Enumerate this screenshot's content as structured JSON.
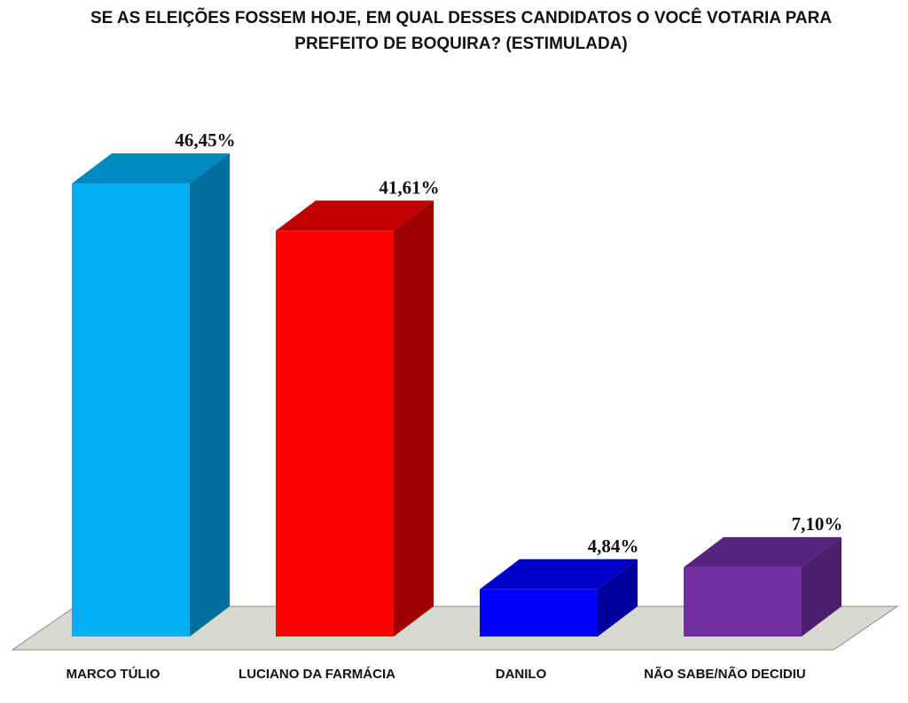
{
  "chart_data": {
    "type": "bar",
    "title_line1": "SE AS ELEIÇÕES FOSSEM HOJE, EM QUAL DESSES CANDIDATOS O VOCÊ VOTARIA PARA",
    "title_line2": "PREFEITO DE BOQUIRA?  (ESTIMULADA)",
    "categories": [
      "MARCO TÚLIO",
      "LUCIANO DA FARMÁCIA",
      "DANILO",
      "NÃO SABE/NÃO DECIDIU"
    ],
    "values": [
      46.45,
      41.61,
      4.84,
      7.1
    ],
    "value_labels": [
      "46,45%",
      "41,61%",
      "4,84%",
      "7,10%"
    ],
    "colors": [
      {
        "front": "#00b0f0",
        "side": "#006f9b",
        "top": "#0088c0"
      },
      {
        "front": "#ff0000",
        "side": "#a00000",
        "top": "#c00000"
      },
      {
        "front": "#0000ff",
        "side": "#00009c",
        "top": "#0000c8"
      },
      {
        "front": "#7030a0",
        "side": "#4a1f6c",
        "top": "#56247e"
      }
    ],
    "floor_color": "#d9d9d4",
    "ylim": [
      0,
      50
    ],
    "grid": false,
    "legend": "none",
    "three_d": true
  }
}
